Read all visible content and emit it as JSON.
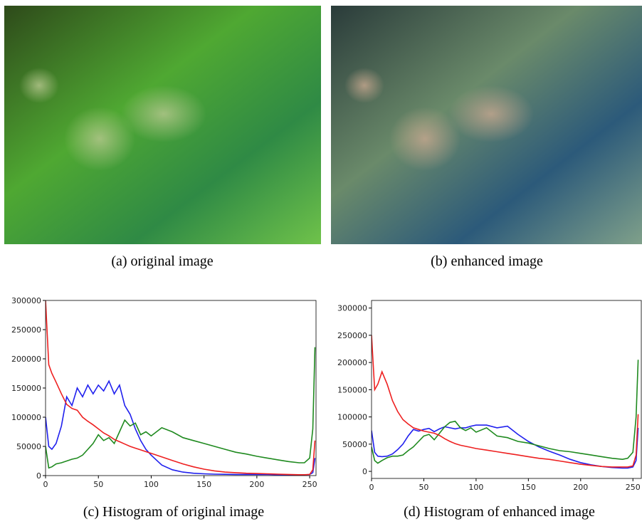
{
  "images": [
    {
      "caption": "(a) original image"
    },
    {
      "caption": "(b) enhanced image"
    }
  ],
  "chart_data": [
    {
      "type": "line",
      "caption": "(c) Histogram of original image",
      "x": [
        0,
        3,
        6,
        10,
        15,
        20,
        25,
        30,
        35,
        40,
        45,
        50,
        55,
        60,
        65,
        70,
        75,
        80,
        85,
        90,
        95,
        100,
        110,
        120,
        130,
        140,
        150,
        160,
        170,
        180,
        190,
        200,
        210,
        220,
        230,
        240,
        245,
        250,
        253,
        255
      ],
      "xlim": [
        0,
        256
      ],
      "xticks": [
        0,
        50,
        100,
        150,
        200,
        250
      ],
      "ylim": [
        0,
        300000
      ],
      "yticks": [
        0,
        50000,
        100000,
        150000,
        200000,
        250000,
        300000
      ],
      "series": [
        {
          "color": "#2020ee",
          "values": [
            100000,
            50000,
            45000,
            55000,
            85000,
            135000,
            120000,
            150000,
            135000,
            155000,
            140000,
            155000,
            145000,
            162000,
            140000,
            155000,
            120000,
            105000,
            80000,
            60000,
            45000,
            35000,
            18000,
            10000,
            6000,
            4000,
            3000,
            2500,
            2200,
            2000,
            2000,
            2000,
            2000,
            1500,
            1000,
            1000,
            1000,
            2000,
            5000,
            30000
          ]
        },
        {
          "color": "#1f8a1f",
          "values": [
            50000,
            13000,
            15000,
            20000,
            22000,
            25000,
            28000,
            30000,
            35000,
            45000,
            55000,
            70000,
            60000,
            65000,
            55000,
            75000,
            95000,
            85000,
            90000,
            70000,
            75000,
            68000,
            82000,
            75000,
            65000,
            60000,
            55000,
            50000,
            45000,
            40000,
            37000,
            33000,
            30000,
            27000,
            24000,
            22000,
            22000,
            30000,
            80000,
            220000
          ]
        },
        {
          "color": "#ee2020",
          "values": [
            300000,
            190000,
            175000,
            160000,
            140000,
            122000,
            115000,
            112000,
            100000,
            93000,
            87000,
            80000,
            73000,
            68000,
            62000,
            58000,
            54000,
            50000,
            47000,
            44000,
            41000,
            38000,
            32000,
            26000,
            20000,
            15000,
            11000,
            8000,
            6000,
            5000,
            4000,
            3500,
            3000,
            2500,
            2000,
            1500,
            1500,
            2000,
            10000,
            60000
          ]
        }
      ]
    },
    {
      "type": "line",
      "caption": "(d) Histogram of enhanced image",
      "x": [
        0,
        3,
        6,
        10,
        15,
        20,
        25,
        30,
        35,
        40,
        45,
        50,
        55,
        60,
        65,
        70,
        75,
        80,
        85,
        90,
        95,
        100,
        110,
        120,
        130,
        140,
        150,
        160,
        170,
        180,
        190,
        200,
        210,
        220,
        230,
        240,
        245,
        250,
        253,
        255
      ],
      "xlim": [
        0,
        258
      ],
      "xticks": [
        0,
        50,
        100,
        150,
        200,
        250
      ],
      "ylim": [
        -13000,
        314000
      ],
      "yticks": [
        0,
        50000,
        100000,
        150000,
        200000,
        250000,
        300000
      ],
      "series": [
        {
          "color": "#2020ee",
          "values": [
            75000,
            35000,
            28000,
            27000,
            28000,
            32000,
            40000,
            50000,
            65000,
            77000,
            74000,
            77000,
            79000,
            73000,
            78000,
            82000,
            80000,
            78000,
            80000,
            80000,
            83000,
            85000,
            85000,
            80000,
            83000,
            68000,
            55000,
            45000,
            37000,
            30000,
            22000,
            16000,
            12000,
            9000,
            7000,
            6000,
            6000,
            8000,
            20000,
            80000
          ]
        },
        {
          "color": "#1f8a1f",
          "values": [
            45000,
            20000,
            15000,
            20000,
            25000,
            28000,
            28000,
            30000,
            38000,
            45000,
            55000,
            65000,
            68000,
            58000,
            70000,
            82000,
            90000,
            92000,
            80000,
            75000,
            80000,
            72000,
            80000,
            65000,
            62000,
            55000,
            52000,
            47000,
            42000,
            38000,
            36000,
            33000,
            30000,
            27000,
            24000,
            22000,
            24000,
            35000,
            100000,
            205000
          ]
        },
        {
          "color": "#ee2020",
          "values": [
            250000,
            150000,
            160000,
            183000,
            160000,
            130000,
            110000,
            95000,
            87000,
            80000,
            77000,
            74000,
            72000,
            70000,
            66000,
            60000,
            55000,
            51000,
            48000,
            46000,
            44000,
            42000,
            39000,
            36000,
            33000,
            30000,
            27000,
            24000,
            22000,
            19000,
            16000,
            13000,
            11000,
            9000,
            8000,
            8000,
            8000,
            10000,
            30000,
            105000
          ]
        }
      ]
    }
  ]
}
